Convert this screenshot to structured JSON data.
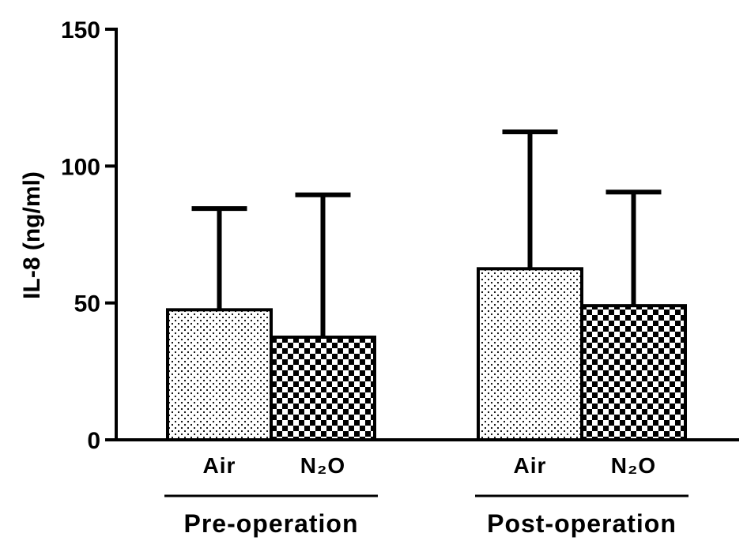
{
  "chart_data": {
    "type": "bar",
    "ylabel": "IL-8 (ng/ml)",
    "ylim": [
      0,
      150
    ],
    "yticks": [
      "0",
      "50",
      "100",
      "150"
    ],
    "ytick_values": [
      0,
      50,
      100,
      150
    ],
    "groups": [
      {
        "label": "Pre-operation",
        "bars": [
          {
            "label": "Air",
            "value": 47.5,
            "error_upper": 84.5,
            "pattern": "dots"
          },
          {
            "label": "N₂O",
            "value": 37.5,
            "error_upper": 89.5,
            "pattern": "checker"
          }
        ]
      },
      {
        "label": "Post-operation",
        "bars": [
          {
            "label": "Air",
            "value": 62.5,
            "error_upper": 112.5,
            "pattern": "dots"
          },
          {
            "label": "N₂O",
            "value": 49,
            "error_upper": 90.5,
            "pattern": "checker"
          }
        ]
      }
    ],
    "grid": false,
    "legend": "none"
  }
}
